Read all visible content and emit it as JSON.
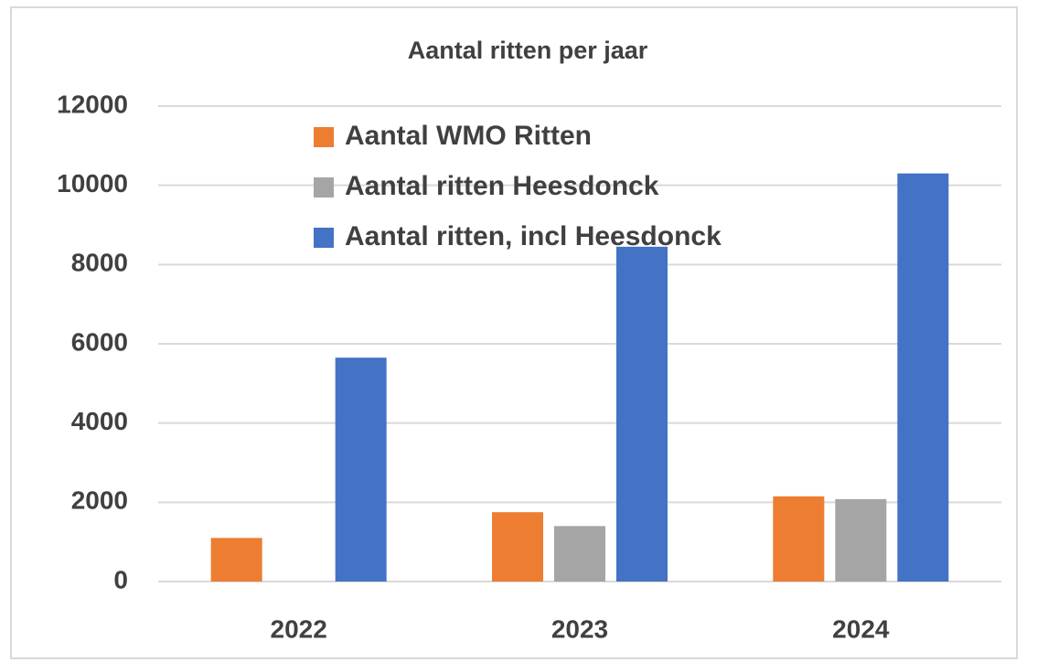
{
  "chart_data": {
    "type": "bar",
    "title": "Aantal ritten per jaar",
    "categories": [
      "2022",
      "2023",
      "2024"
    ],
    "series": [
      {
        "name": "Aantal WMO Ritten",
        "color": "#ed7d31",
        "values": [
          1100,
          1750,
          2150
        ]
      },
      {
        "name": "Aantal ritten Heesdonck",
        "color": "#a5a5a5",
        "values": [
          0,
          1400,
          2080
        ]
      },
      {
        "name": "Aantal ritten, incl Heesdonck",
        "color": "#4472c4",
        "values": [
          5650,
          8450,
          10300
        ]
      }
    ],
    "ylim": [
      0,
      12000
    ],
    "yticks": [
      0,
      2000,
      4000,
      6000,
      8000,
      10000,
      12000
    ],
    "grid": true,
    "legend": "top-left"
  }
}
